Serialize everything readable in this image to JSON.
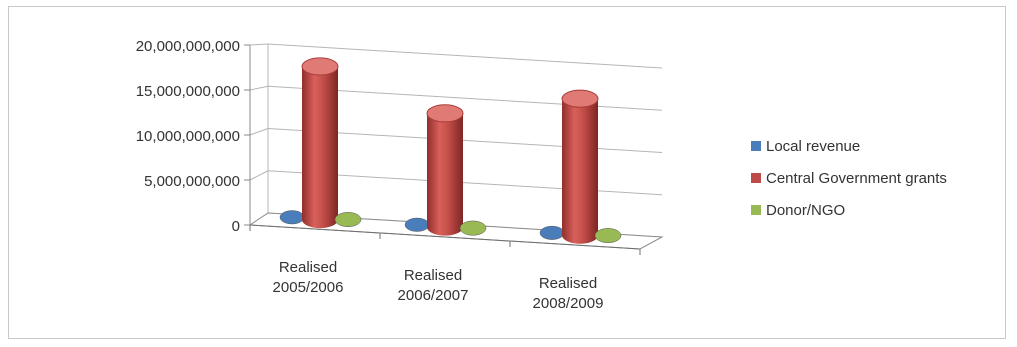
{
  "chart_data": {
    "type": "bar",
    "categories": [
      "Realised 2005/2006",
      "Realised 2006/2007",
      "Realised 2008/2009"
    ],
    "category_lines": [
      [
        "Realised",
        "2005/2006"
      ],
      [
        "Realised",
        "2006/2007"
      ],
      [
        "Realised",
        "2008/2009"
      ]
    ],
    "series": [
      {
        "name": "Local revenue",
        "color": "#4a7ebb",
        "values": [
          150000000,
          150000000,
          150000000
        ]
      },
      {
        "name": "Central Government grants",
        "color": "#be4b48",
        "values": [
          17500000000,
          13000000000,
          15600000000
        ]
      },
      {
        "name": "Donor/NGO",
        "color": "#98b954",
        "values": [
          400000000,
          150000000,
          300000000
        ]
      }
    ],
    "y_ticks": [
      "0",
      "5,000,000,000",
      "10,000,000,000",
      "15,000,000,000",
      "20,000,000,000"
    ],
    "y_tick_values": [
      0,
      5000000000,
      10000000000,
      15000000000,
      20000000000
    ],
    "ylim": [
      0,
      20000000000
    ],
    "grid": true,
    "legend_position": "right",
    "style": "3d-cylinder"
  }
}
